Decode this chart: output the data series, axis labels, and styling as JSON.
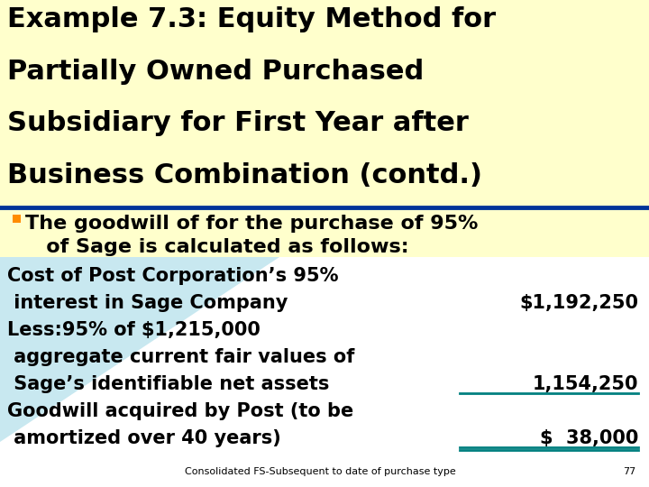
{
  "title_lines": [
    "Example 7.3: Equity Method for",
    "Partially Owned Purchased",
    "Subsidiary for First Year after",
    "Business Combination (contd.)"
  ],
  "title_color": "#000000",
  "header_line_color": "#003399",
  "bullet_color": "#FF8C00",
  "bullet_text_lines": [
    "The goodwill of for the purchase of 95%",
    "   of Sage is calculated as follows:"
  ],
  "body_lines": [
    {
      "text": "Cost of Post Corporation’s 95%",
      "value": null,
      "underline": false
    },
    {
      "text": " interest in Sage Company",
      "value": "$1,192,250",
      "underline": false
    },
    {
      "text": "Less:95% of $1,215,000",
      "value": null,
      "underline": false
    },
    {
      "text": " aggregate current fair values of",
      "value": null,
      "underline": false
    },
    {
      "text": " Sage’s identifiable net assets",
      "value": "1,154,250",
      "underline": true
    },
    {
      "text": "Goodwill acquired by Post (to be",
      "value": null,
      "underline": false
    },
    {
      "text": " amortized over 40 years)",
      "value": "$  38,000",
      "underline": true
    }
  ],
  "footer_text": "Consolidated FS-Subsequent to date of purchase type",
  "footer_page": "77",
  "title_font_size": 22,
  "bullet_font_size": 16,
  "body_font_size": 15,
  "underline_color": "#008080",
  "bg_yellow": "#FFFFCC",
  "bg_blue_light": "#CCE5FF",
  "bg_white": "#FFFFFF"
}
